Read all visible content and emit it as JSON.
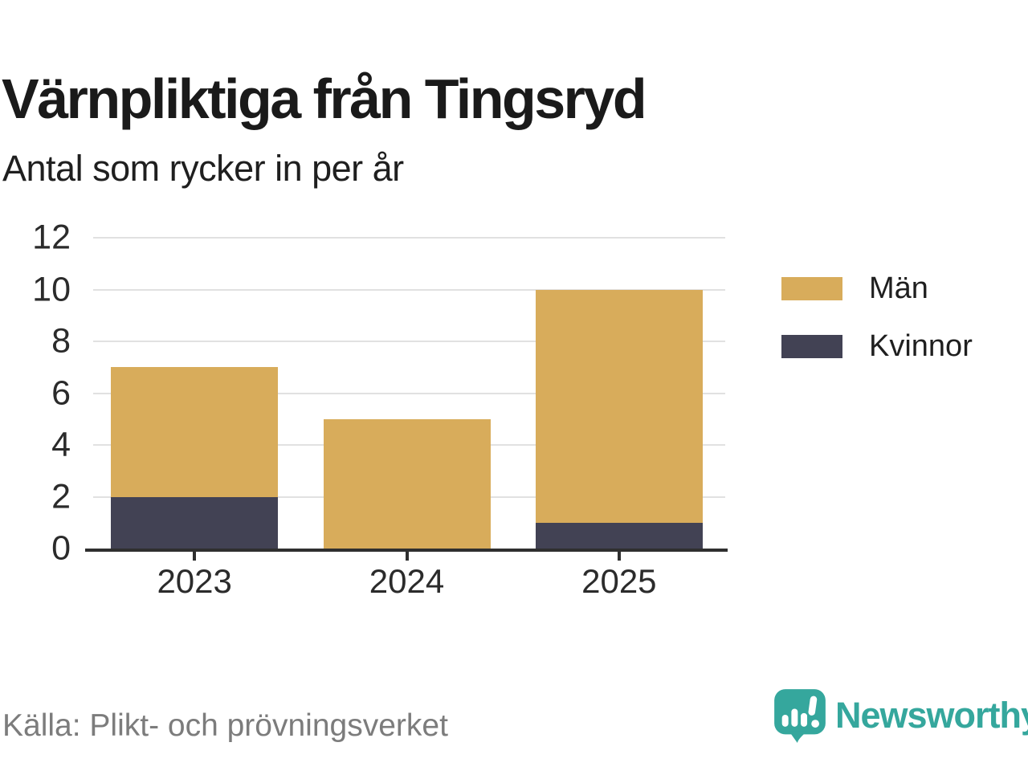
{
  "header": {
    "title": "Värnpliktiga från Tingsryd",
    "subtitle": "Antal som rycker in per år"
  },
  "chart_data": {
    "type": "bar",
    "stacked": true,
    "title": "Värnpliktiga från Tingsryd",
    "subtitle": "Antal som rycker in per år",
    "categories": [
      "2023",
      "2024",
      "2025"
    ],
    "series": [
      {
        "name": "Män",
        "color": "#D8AC5B",
        "values": [
          5,
          5,
          9
        ]
      },
      {
        "name": "Kvinnor",
        "color": "#424254",
        "values": [
          2,
          0,
          1
        ]
      }
    ],
    "totals": [
      7,
      5,
      10
    ],
    "xlabel": "",
    "ylabel": "",
    "ylim": [
      0,
      12
    ],
    "yticks": [
      0,
      2,
      4,
      6,
      8,
      10,
      12
    ],
    "grid": true,
    "legend_position": "right"
  },
  "footer": {
    "source": "Källa: Plikt- och prövningsverket",
    "brand": "Newsworthy"
  },
  "colors": {
    "man": "#D8AC5B",
    "kvinnor": "#424254",
    "axis": "#2F2F2F",
    "grid": "#E1E1E1",
    "title_text": "#1A1A1A",
    "tick_text": "#2B2B2B",
    "muted_text": "#7C7C7C",
    "brand_teal": "#35A79D",
    "background": "#FFFFFF"
  }
}
